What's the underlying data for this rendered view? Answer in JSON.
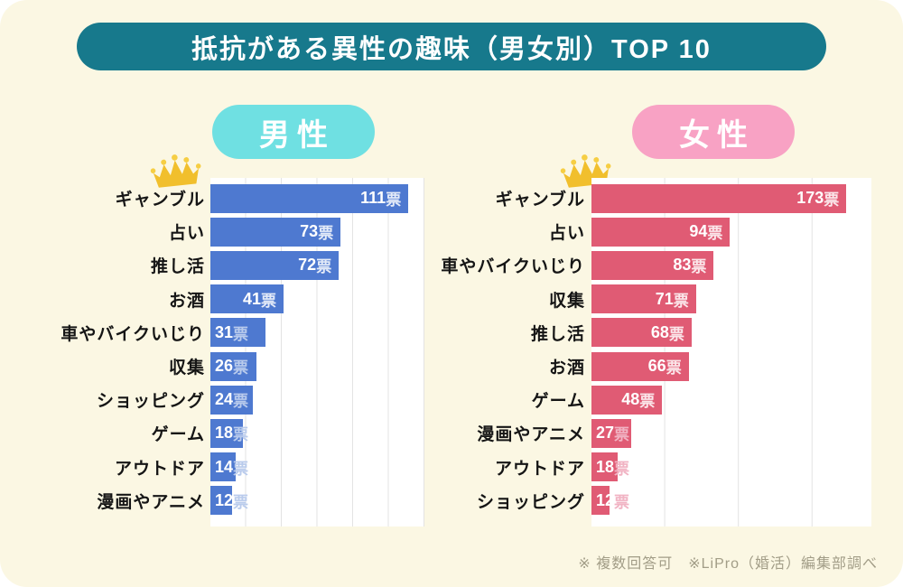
{
  "title": "抵抗がある異性の趣味（男女別）TOP 10",
  "footer": "※ 複数回答可　※LiPro（婚活）編集部調べ",
  "vote_suffix": "票",
  "colors": {
    "background": "#FBF7E3",
    "title_banner": "#17798C",
    "male_badge": "#6FE0E2",
    "female_badge": "#F8A2C4",
    "male_bar": "#4E79D0",
    "female_bar": "#E05B74",
    "gridline": "#E3E3E3",
    "crown": "#F2C233",
    "footer_text": "#A29D87"
  },
  "chart_data": {
    "type": "bar",
    "orientation": "horizontal",
    "title": "抵抗がある異性の趣味（男女別）TOP 10",
    "value_unit": "票",
    "grid": true,
    "charts": [
      {
        "badge": "男性",
        "xmax": 120,
        "grid_step": 20,
        "rows": [
          {
            "label": "ギャンブル",
            "votes": 111
          },
          {
            "label": "占い",
            "votes": 73
          },
          {
            "label": "推し活",
            "votes": 72
          },
          {
            "label": "お酒",
            "votes": 41
          },
          {
            "label": "車やバイクいじり",
            "votes": 31
          },
          {
            "label": "収集",
            "votes": 26
          },
          {
            "label": "ショッピング",
            "votes": 24
          },
          {
            "label": "ゲーム",
            "votes": 18
          },
          {
            "label": "アウトドア",
            "votes": 14
          },
          {
            "label": "漫画やアニメ",
            "votes": 12
          }
        ]
      },
      {
        "badge": "女性",
        "xmax": 190,
        "grid_step": 50,
        "rows": [
          {
            "label": "ギャンブル",
            "votes": 173
          },
          {
            "label": "占い",
            "votes": 94
          },
          {
            "label": "車やバイクいじり",
            "votes": 83
          },
          {
            "label": "収集",
            "votes": 71
          },
          {
            "label": "推し活",
            "votes": 68
          },
          {
            "label": "お酒",
            "votes": 66
          },
          {
            "label": "ゲーム",
            "votes": 48
          },
          {
            "label": "漫画やアニメ",
            "votes": 27
          },
          {
            "label": "アウトドア",
            "votes": 18
          },
          {
            "label": "ショッピング",
            "votes": 12
          }
        ]
      }
    ]
  }
}
